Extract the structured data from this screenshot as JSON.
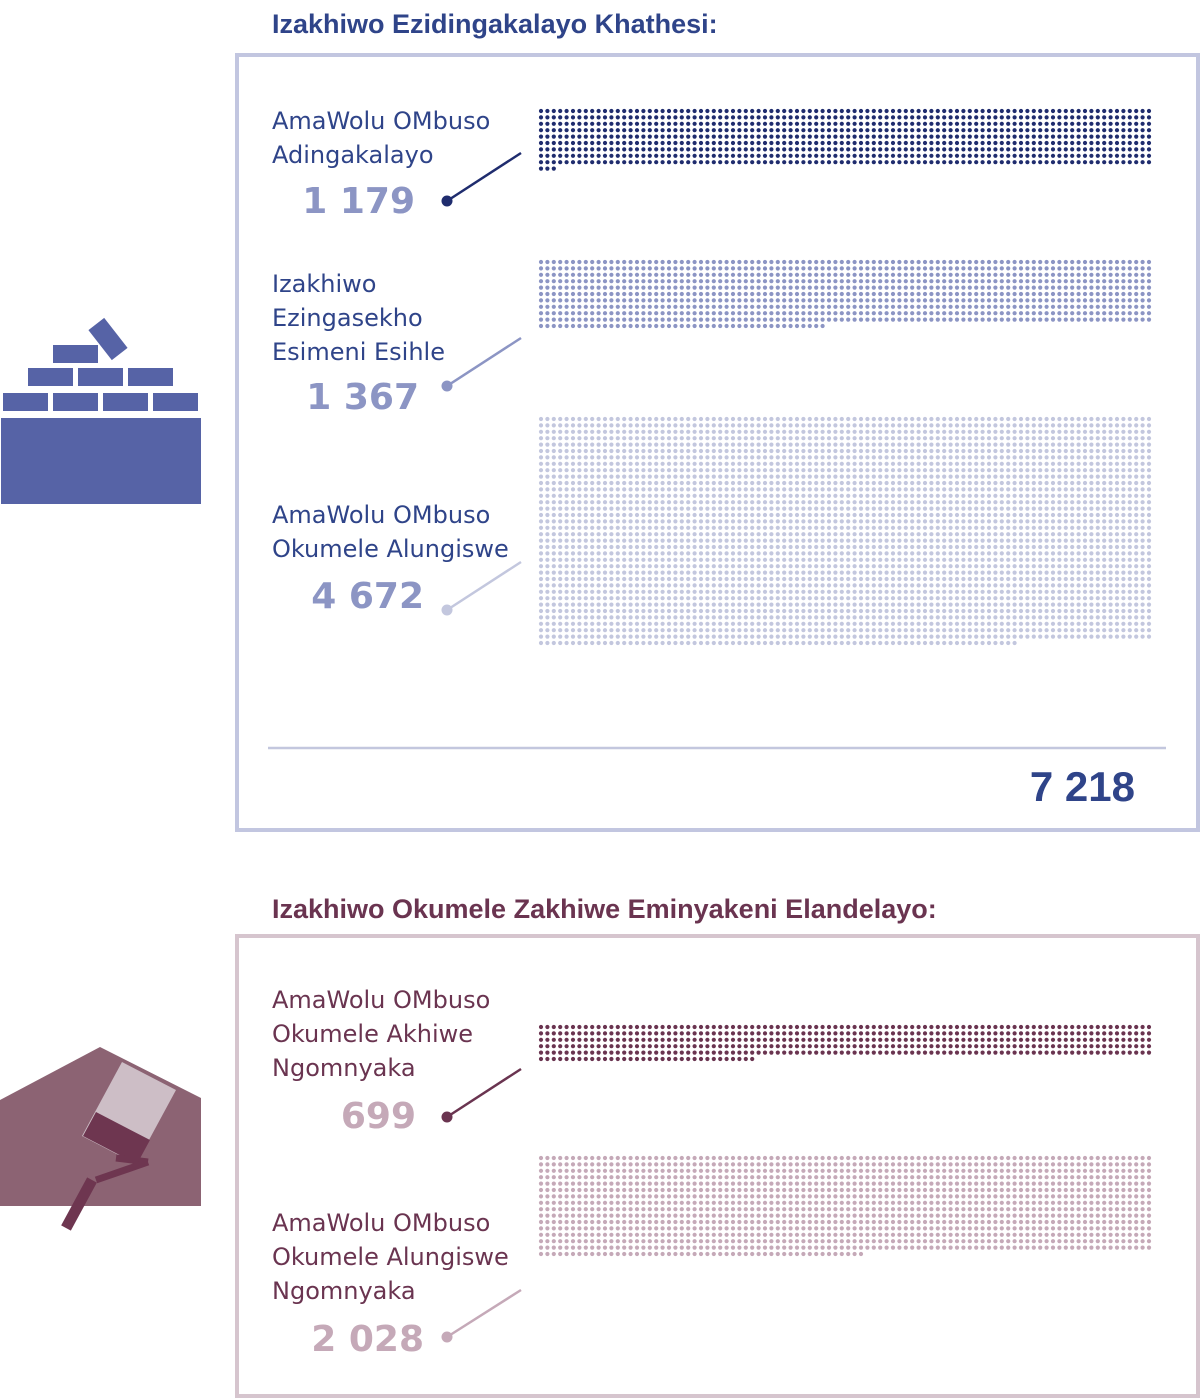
{
  "colors": {
    "blue_dark": "#1f2c6e",
    "blue_mid": "#8c95c4",
    "blue_light": "#c3c7de",
    "blue_title": "#2f4489",
    "blue_icon": "#5663a6",
    "maroon_dark": "#6a3450",
    "maroon_light": "#c5a9b8",
    "maroon_icon": "#8c6373",
    "maroon_brush": "#6e3650",
    "maroon_paint": "#cdbec6"
  },
  "icons": [
    "brick-wall-icon",
    "paint-roller-house-icon"
  ],
  "chart_data": [
    {
      "type": "bar",
      "title": "Izakhiwo Ezidingakalayo Khathesi:",
      "categories": [
        "AmaWolu OMbuso Adingakalayo",
        "Izakhiwo Ezingasekho Esimeni Esihle",
        "AmaWolu OMbuso Okumele Alungiswe"
      ],
      "labels": [
        [
          "AmaWolu OMbuso",
          "Adingakalayo"
        ],
        [
          "Izakhiwo",
          "Ezingasekho",
          "Esimeni Esihle"
        ],
        [
          "AmaWolu OMbuso",
          "Okumele Alungiswe"
        ]
      ],
      "values": [
        1179,
        1367,
        4672
      ],
      "value_labels": [
        "1 179",
        "1 367",
        "4 672"
      ],
      "total": 7218,
      "total_label": "7 218"
    },
    {
      "type": "bar",
      "title": "Izakhiwo Okumele Zakhiwe Eminyakeni Elandelayo:",
      "categories": [
        "AmaWolu OMbuso Okumele Akhiwe Ngomnyaka",
        "AmaWolu OMbuso Okumele Alungiswe Ngomnyaka"
      ],
      "labels": [
        [
          "AmaWolu OMbuso",
          "Okumele Akhiwe",
          "Ngomnyaka"
        ],
        [
          "AmaWolu OMbuso",
          "Okumele Alungiswe",
          "Ngomnyaka"
        ]
      ],
      "values": [
        699,
        2028
      ],
      "value_labels": [
        "699",
        "2 028"
      ]
    }
  ]
}
